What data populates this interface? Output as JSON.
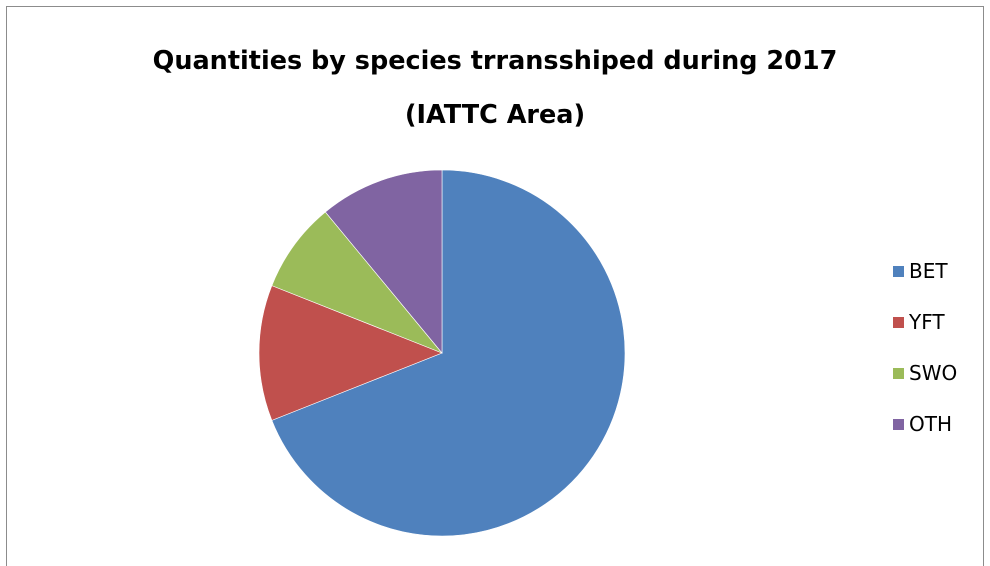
{
  "chart_data": {
    "type": "pie",
    "title": "Quantities by species trransshiped during 2017",
    "subtitle": "(IATTC Area)",
    "categories": [
      "BET",
      "YFT",
      "SWO",
      "OTH"
    ],
    "values": [
      69,
      12,
      8,
      11
    ],
    "colors": [
      "#4f81bd",
      "#c0504d",
      "#9bbb59",
      "#8064a2"
    ],
    "legend_position": "right",
    "start_angle": "top, clockwise"
  }
}
